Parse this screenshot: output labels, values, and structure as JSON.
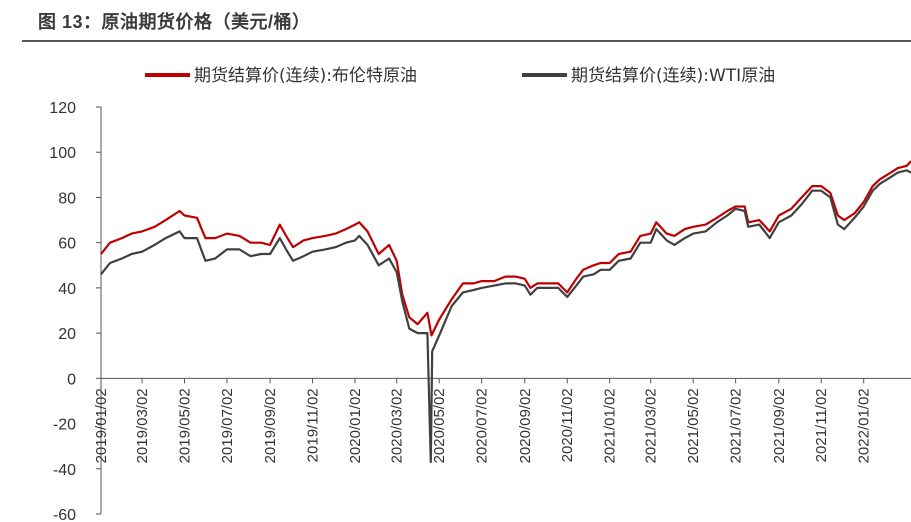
{
  "header": {
    "title": "图 13：原油期货价格（美元/桶）"
  },
  "chart_data": {
    "type": "line",
    "title": "图 13：原油期货价格（美元/桶）",
    "ylim": [
      -60,
      120
    ],
    "yticks": [
      120,
      100,
      80,
      60,
      40,
      20,
      0,
      -20,
      -40,
      -60
    ],
    "xticks": [
      "2019/01/02",
      "2019/03/02",
      "2019/05/02",
      "2019/07/02",
      "2019/09/02",
      "2019/11/02",
      "2020/01/02",
      "2020/03/02",
      "2020/05/02",
      "2020/07/02",
      "2020/09/02",
      "2020/11/02",
      "2021/01/02",
      "2021/03/02",
      "2021/05/02",
      "2021/07/02",
      "2021/09/02",
      "2021/11/02",
      "2022/01/02"
    ],
    "xrange": [
      "2019/01/02",
      "2022/03/11"
    ],
    "legend_position": "top",
    "grid": false,
    "series": [
      {
        "name": "期货结算价(连续):布伦特原油",
        "color": "#c00000",
        "points": [
          [
            "2019/01/02",
            55
          ],
          [
            "2019/01/15",
            60
          ],
          [
            "2019/02/01",
            62
          ],
          [
            "2019/02/15",
            64
          ],
          [
            "2019/03/02",
            65
          ],
          [
            "2019/03/20",
            67
          ],
          [
            "2019/04/05",
            70
          ],
          [
            "2019/04/25",
            74
          ],
          [
            "2019/05/02",
            72
          ],
          [
            "2019/05/20",
            71
          ],
          [
            "2019/06/01",
            62
          ],
          [
            "2019/06/15",
            62
          ],
          [
            "2019/07/02",
            64
          ],
          [
            "2019/07/20",
            63
          ],
          [
            "2019/08/05",
            60
          ],
          [
            "2019/08/20",
            60
          ],
          [
            "2019/09/02",
            59
          ],
          [
            "2019/09/16",
            68
          ],
          [
            "2019/09/25",
            63
          ],
          [
            "2019/10/05",
            58
          ],
          [
            "2019/10/20",
            61
          ],
          [
            "2019/11/02",
            62
          ],
          [
            "2019/11/20",
            63
          ],
          [
            "2019/12/05",
            64
          ],
          [
            "2019/12/20",
            66
          ],
          [
            "2020/01/02",
            68
          ],
          [
            "2020/01/08",
            69
          ],
          [
            "2020/01/20",
            65
          ],
          [
            "2020/02/05",
            55
          ],
          [
            "2020/02/20",
            59
          ],
          [
            "2020/03/02",
            52
          ],
          [
            "2020/03/10",
            37
          ],
          [
            "2020/03/20",
            27
          ],
          [
            "2020/04/01",
            24
          ],
          [
            "2020/04/15",
            29
          ],
          [
            "2020/04/21",
            19
          ],
          [
            "2020/05/02",
            26
          ],
          [
            "2020/05/20",
            35
          ],
          [
            "2020/06/05",
            42
          ],
          [
            "2020/06/20",
            42
          ],
          [
            "2020/07/02",
            43
          ],
          [
            "2020/07/20",
            43
          ],
          [
            "2020/08/05",
            45
          ],
          [
            "2020/08/20",
            45
          ],
          [
            "2020/09/02",
            44
          ],
          [
            "2020/09/10",
            40
          ],
          [
            "2020/09/20",
            42
          ],
          [
            "2020/10/05",
            42
          ],
          [
            "2020/10/20",
            42
          ],
          [
            "2020/11/02",
            38
          ],
          [
            "2020/11/15",
            44
          ],
          [
            "2020/11/25",
            48
          ],
          [
            "2020/12/10",
            50
          ],
          [
            "2020/12/20",
            51
          ],
          [
            "2021/01/02",
            51
          ],
          [
            "2021/01/15",
            55
          ],
          [
            "2021/02/01",
            56
          ],
          [
            "2021/02/15",
            63
          ],
          [
            "2021/03/02",
            64
          ],
          [
            "2021/03/10",
            69
          ],
          [
            "2021/03/25",
            64
          ],
          [
            "2021/04/05",
            63
          ],
          [
            "2021/04/20",
            66
          ],
          [
            "2021/05/02",
            67
          ],
          [
            "2021/05/20",
            68
          ],
          [
            "2021/06/05",
            71
          ],
          [
            "2021/06/20",
            74
          ],
          [
            "2021/07/02",
            76
          ],
          [
            "2021/07/15",
            76
          ],
          [
            "2021/07/20",
            69
          ],
          [
            "2021/08/05",
            70
          ],
          [
            "2021/08/20",
            65
          ],
          [
            "2021/09/02",
            72
          ],
          [
            "2021/09/20",
            75
          ],
          [
            "2021/10/05",
            80
          ],
          [
            "2021/10/20",
            85
          ],
          [
            "2021/11/02",
            85
          ],
          [
            "2021/11/15",
            82
          ],
          [
            "2021/11/26",
            72
          ],
          [
            "2021/12/05",
            70
          ],
          [
            "2021/12/20",
            73
          ],
          [
            "2022/01/02",
            78
          ],
          [
            "2022/01/15",
            85
          ],
          [
            "2022/01/25",
            88
          ],
          [
            "2022/02/10",
            91
          ],
          [
            "2022/02/20",
            93
          ],
          [
            "2022/03/05",
            94
          ],
          [
            "2022/03/11",
            96
          ]
        ]
      },
      {
        "name": "期货结算价(连续):WTI原油",
        "color": "#404040",
        "points": [
          [
            "2019/01/02",
            46
          ],
          [
            "2019/01/15",
            51
          ],
          [
            "2019/02/01",
            53
          ],
          [
            "2019/02/15",
            55
          ],
          [
            "2019/03/02",
            56
          ],
          [
            "2019/03/20",
            59
          ],
          [
            "2019/04/05",
            62
          ],
          [
            "2019/04/25",
            65
          ],
          [
            "2019/05/02",
            62
          ],
          [
            "2019/05/20",
            62
          ],
          [
            "2019/06/01",
            52
          ],
          [
            "2019/06/15",
            53
          ],
          [
            "2019/07/02",
            57
          ],
          [
            "2019/07/20",
            57
          ],
          [
            "2019/08/05",
            54
          ],
          [
            "2019/08/20",
            55
          ],
          [
            "2019/09/02",
            55
          ],
          [
            "2019/09/16",
            62
          ],
          [
            "2019/09/25",
            57
          ],
          [
            "2019/10/05",
            52
          ],
          [
            "2019/10/20",
            54
          ],
          [
            "2019/11/02",
            56
          ],
          [
            "2019/11/20",
            57
          ],
          [
            "2019/12/05",
            58
          ],
          [
            "2019/12/20",
            60
          ],
          [
            "2020/01/02",
            61
          ],
          [
            "2020/01/08",
            63
          ],
          [
            "2020/01/20",
            59
          ],
          [
            "2020/02/05",
            50
          ],
          [
            "2020/02/20",
            53
          ],
          [
            "2020/03/02",
            47
          ],
          [
            "2020/03/10",
            34
          ],
          [
            "2020/03/20",
            22
          ],
          [
            "2020/04/01",
            20
          ],
          [
            "2020/04/15",
            20
          ],
          [
            "2020/04/20",
            -37
          ],
          [
            "2020/04/22",
            12
          ],
          [
            "2020/05/02",
            19
          ],
          [
            "2020/05/20",
            32
          ],
          [
            "2020/06/05",
            38
          ],
          [
            "2020/06/20",
            39
          ],
          [
            "2020/07/02",
            40
          ],
          [
            "2020/07/20",
            41
          ],
          [
            "2020/08/05",
            42
          ],
          [
            "2020/08/20",
            42
          ],
          [
            "2020/09/02",
            41
          ],
          [
            "2020/09/10",
            37
          ],
          [
            "2020/09/20",
            40
          ],
          [
            "2020/10/05",
            40
          ],
          [
            "2020/10/20",
            40
          ],
          [
            "2020/11/02",
            36
          ],
          [
            "2020/11/15",
            41
          ],
          [
            "2020/11/25",
            45
          ],
          [
            "2020/12/10",
            46
          ],
          [
            "2020/12/20",
            48
          ],
          [
            "2021/01/02",
            48
          ],
          [
            "2021/01/15",
            52
          ],
          [
            "2021/02/01",
            53
          ],
          [
            "2021/02/15",
            60
          ],
          [
            "2021/03/02",
            60
          ],
          [
            "2021/03/10",
            66
          ],
          [
            "2021/03/25",
            61
          ],
          [
            "2021/04/05",
            59
          ],
          [
            "2021/04/20",
            62
          ],
          [
            "2021/05/02",
            64
          ],
          [
            "2021/05/20",
            65
          ],
          [
            "2021/06/05",
            69
          ],
          [
            "2021/06/20",
            72
          ],
          [
            "2021/07/02",
            75
          ],
          [
            "2021/07/15",
            74
          ],
          [
            "2021/07/20",
            67
          ],
          [
            "2021/08/05",
            68
          ],
          [
            "2021/08/20",
            62
          ],
          [
            "2021/09/02",
            69
          ],
          [
            "2021/09/20",
            72
          ],
          [
            "2021/10/05",
            77
          ],
          [
            "2021/10/20",
            83
          ],
          [
            "2021/11/02",
            83
          ],
          [
            "2021/11/15",
            80
          ],
          [
            "2021/11/26",
            68
          ],
          [
            "2021/12/05",
            66
          ],
          [
            "2021/12/20",
            71
          ],
          [
            "2022/01/02",
            76
          ],
          [
            "2022/01/15",
            83
          ],
          [
            "2022/01/25",
            86
          ],
          [
            "2022/02/10",
            89
          ],
          [
            "2022/02/20",
            91
          ],
          [
            "2022/03/05",
            92
          ],
          [
            "2022/03/11",
            91
          ]
        ]
      }
    ]
  }
}
